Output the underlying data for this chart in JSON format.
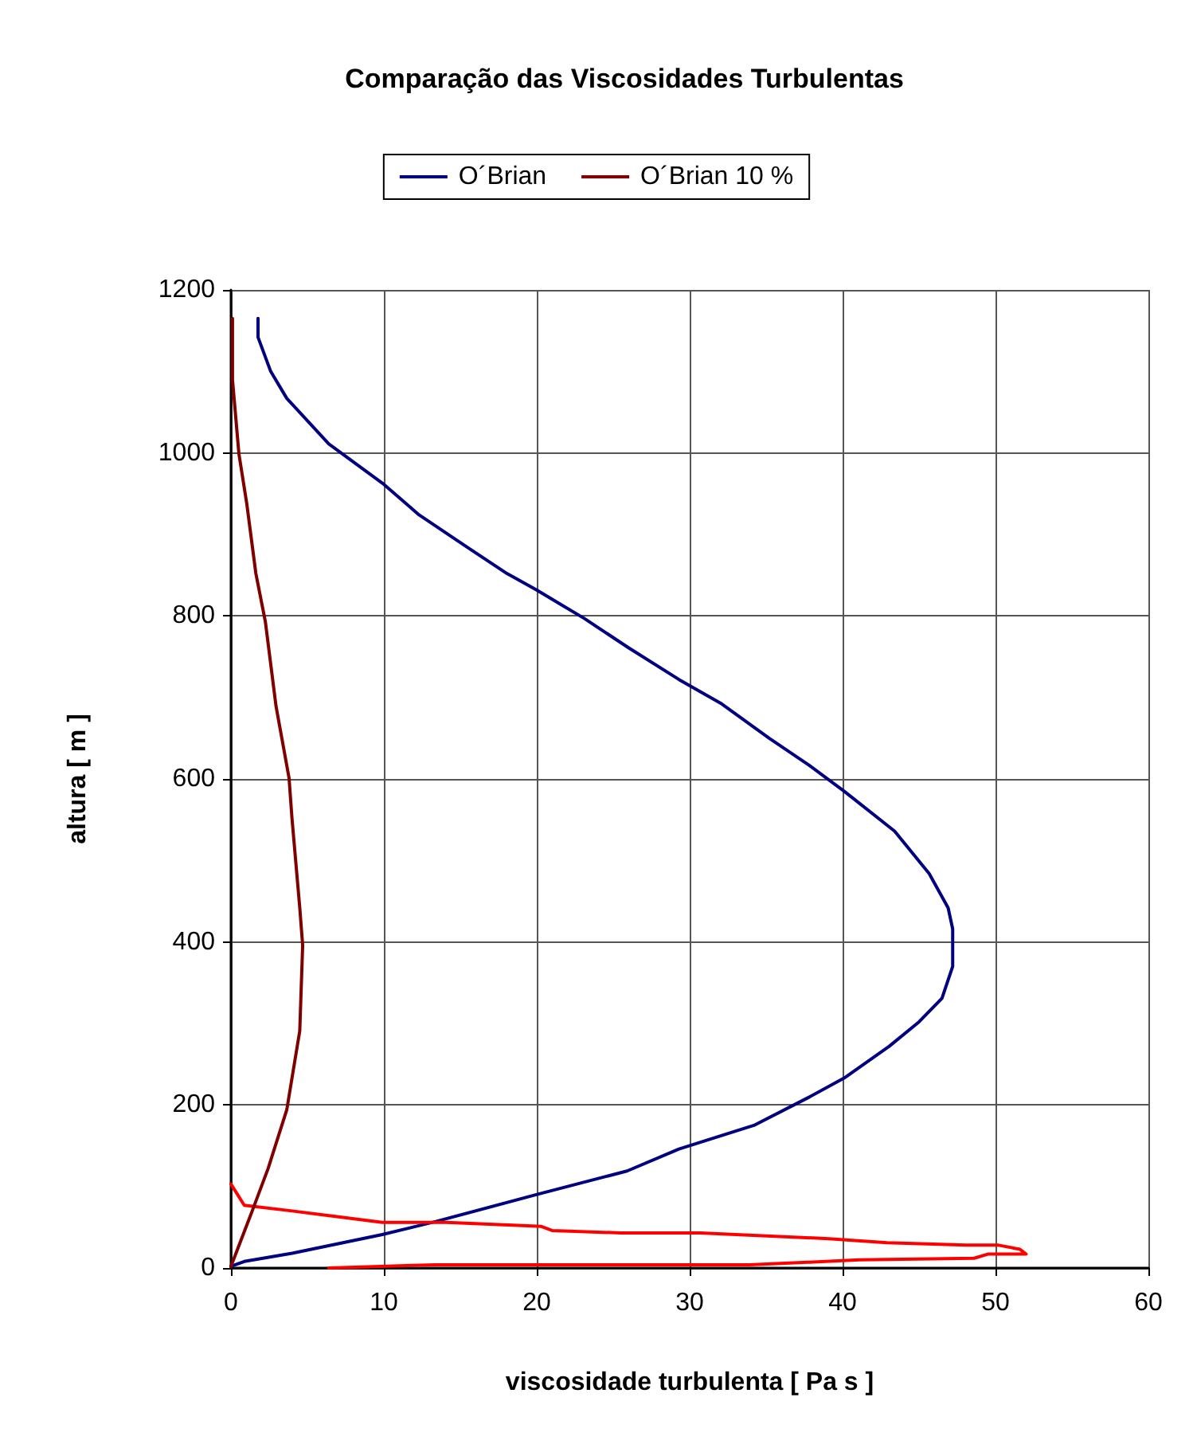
{
  "chart_data": {
    "type": "line",
    "title": "Comparação das Viscosidades Turbulentas",
    "xlabel": "viscosidade turbulenta [ Pa s ]",
    "ylabel": "altura [ m ]",
    "xlim": [
      0,
      60
    ],
    "xticks": [
      0,
      10,
      20,
      30,
      40,
      50,
      60
    ],
    "ylim": [
      0,
      1200
    ],
    "yticks": [
      0,
      200,
      400,
      600,
      800,
      1000,
      1200
    ],
    "grid": true,
    "legend": "top",
    "marker": "none",
    "line_style": "solid",
    "series": [
      {
        "name": "O´Brian",
        "color": "#000080",
        "x": [
          0,
          0.87,
          4.0,
          9.9,
          13.4,
          19.97,
          25.9,
          29.3,
          34.2,
          37.85,
          40.1,
          43.05,
          45.0,
          46.5,
          47.2,
          47.2,
          46.9,
          45.66,
          43.4,
          40.1,
          37.8,
          35.2,
          32.1,
          29.3,
          26.0,
          23.1,
          19.97,
          18.05,
          15.4,
          12.3,
          9.9,
          6.4,
          3.65,
          2.6,
          1.77,
          1.77
        ],
        "values": [
          2,
          8,
          18,
          41,
          57,
          90,
          119,
          146,
          175,
          210,
          233,
          272,
          302,
          331,
          370,
          416,
          442,
          484,
          536,
          585,
          617,
          650,
          692,
          722,
          761,
          797,
          832,
          852,
          885,
          924,
          963,
          1011,
          1067,
          1100,
          1142,
          1165
        ]
      },
      {
        "color": "#ff0000",
        "x": [
          0,
          0.87,
          4.0,
          9.9,
          14.1,
          20.3,
          21,
          25.5,
          30.7,
          39.1,
          42.9,
          48.1,
          50.2,
          51.6,
          52,
          49.5,
          48.6,
          41.1,
          37.7,
          33.9,
          13.4,
          6.4
        ],
        "values": [
          103,
          77,
          70,
          56,
          56,
          51,
          46,
          43,
          43,
          36,
          31,
          28,
          28,
          23,
          17,
          17,
          12,
          10,
          7,
          4,
          4,
          0
        ]
      },
      {
        "name": "O´Brian 10 %",
        "color": "#800000",
        "x": [
          0,
          1.39,
          2.43,
          3.65,
          4.5,
          4.69,
          4.5,
          3.99,
          3.8,
          2.95,
          2.25,
          1.63,
          1.04,
          0.52,
          0.1,
          0.1
        ],
        "values": [
          2,
          70,
          122,
          194,
          291,
          396,
          442,
          552,
          601,
          689,
          793,
          852,
          937,
          999,
          1090,
          1165
        ]
      }
    ]
  }
}
